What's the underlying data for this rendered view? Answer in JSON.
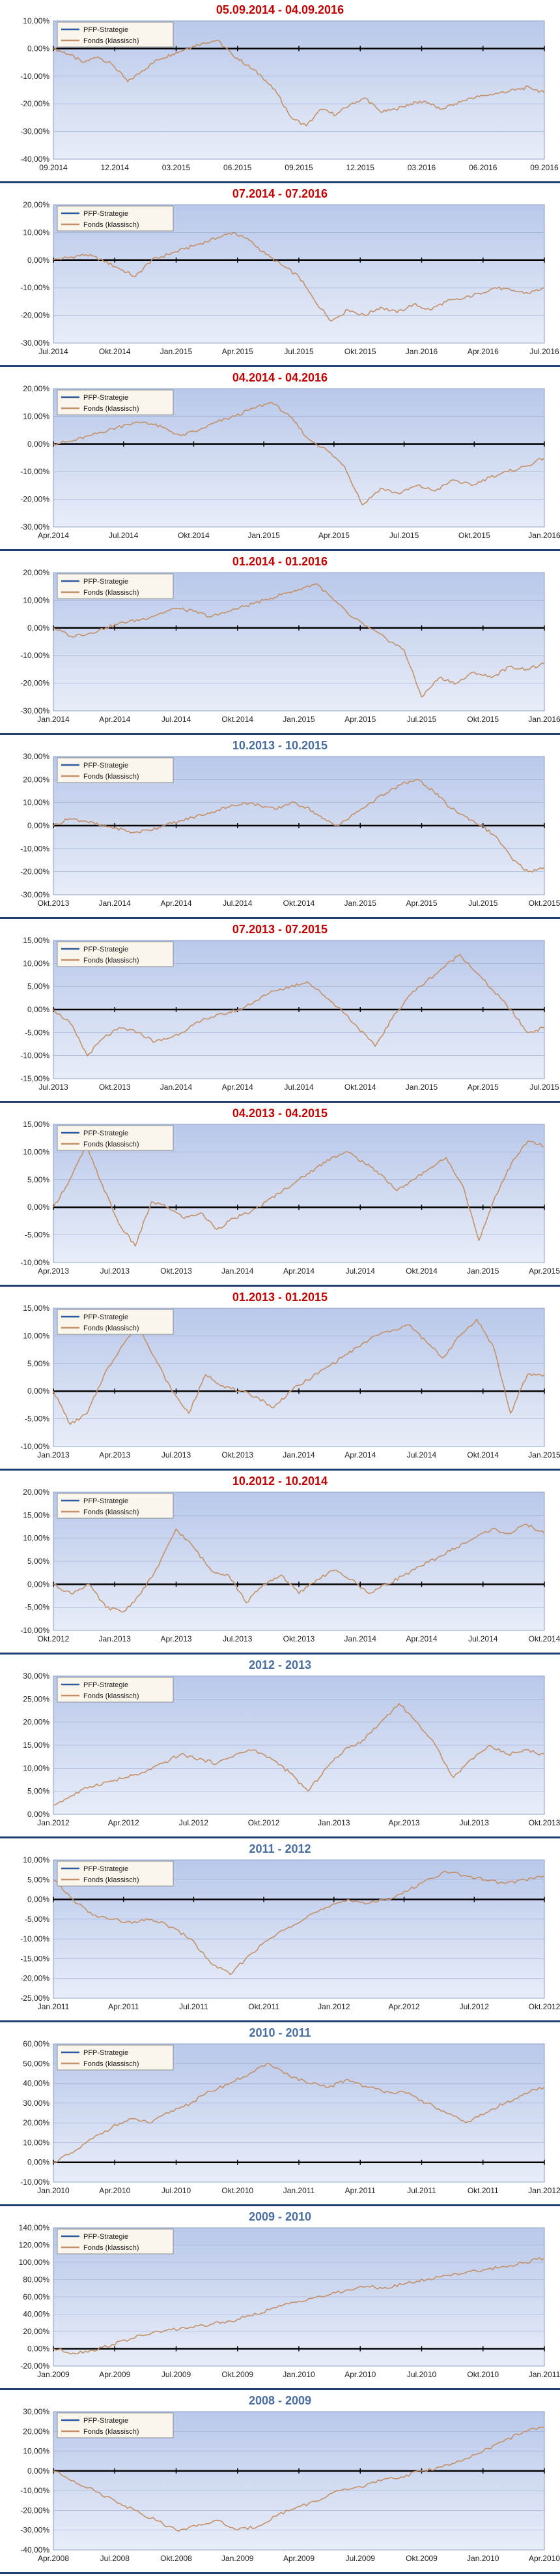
{
  "legend": {
    "strategy": "PFP-Strategie",
    "fund": "Fonds (klassisch)"
  },
  "colors": {
    "title_red": "#c00000",
    "title_blue": "#4a6da0",
    "fund_line": "#c39068",
    "strategy_line": "#2d5aa0",
    "plot_bg_top": "#b9c8ea",
    "plot_bg_bottom": "#e8edf8",
    "zero_line": "#000000",
    "divider": "#1f3f73"
  },
  "chart_data": [
    {
      "type": "line",
      "title": "05.09.2014 - 04.09.2016",
      "title_color": "red",
      "yticks": [
        "10,00%",
        "0,00%",
        "-10,00%",
        "-20,00%",
        "-30,00%",
        "-40,00%"
      ],
      "ylim": [
        -40,
        10
      ],
      "xticks": [
        "09.2014",
        "12.2014",
        "03.2015",
        "06.2015",
        "09.2015",
        "12.2015",
        "03.2016",
        "06.2016",
        "09.2016"
      ],
      "series": [
        {
          "name": "Fonds (klassisch)",
          "values": [
            0,
            -2,
            -5,
            -3,
            -6,
            -12,
            -8,
            -4,
            -2,
            0,
            2,
            3,
            -2,
            -6,
            -10,
            -16,
            -25,
            -28,
            -22,
            -24,
            -20,
            -18,
            -23,
            -22,
            -20,
            -19,
            -22,
            -20,
            -18,
            -17,
            -16,
            -15,
            -14,
            -16
          ]
        }
      ]
    },
    {
      "type": "line",
      "title": "07.2014 - 07.2016",
      "title_color": "red",
      "yticks": [
        "20,00%",
        "10,00%",
        "0,00%",
        "-10,00%",
        "-20,00%",
        "-30,00%"
      ],
      "ylim": [
        -30,
        20
      ],
      "xticks": [
        "Jul.2014",
        "Okt.2014",
        "Jan.2015",
        "Apr.2015",
        "Jul.2015",
        "Okt.2015",
        "Jan.2016",
        "Apr.2016",
        "Jul.2016"
      ],
      "series": [
        {
          "name": "Fonds (klassisch)",
          "values": [
            0,
            1,
            2,
            0,
            -3,
            -6,
            0,
            2,
            4,
            6,
            8,
            10,
            7,
            2,
            -2,
            -6,
            -15,
            -22,
            -18,
            -20,
            -17,
            -19,
            -16,
            -18,
            -15,
            -14,
            -12,
            -10,
            -11,
            -12,
            -10
          ]
        }
      ]
    },
    {
      "type": "line",
      "title": "04.2014 - 04.2016",
      "title_color": "red",
      "yticks": [
        "20,00%",
        "10,00%",
        "0,00%",
        "-10,00%",
        "-20,00%",
        "-30,00%"
      ],
      "ylim": [
        -30,
        20
      ],
      "xticks": [
        "Apr.2014",
        "Jul.2014",
        "Okt.2014",
        "Jan.2015",
        "Apr.2015",
        "Jul.2015",
        "Okt.2015",
        "Jan.2016"
      ],
      "series": [
        {
          "name": "Fonds (klassisch)",
          "values": [
            0,
            1,
            3,
            5,
            7,
            8,
            6,
            3,
            5,
            8,
            10,
            13,
            15,
            10,
            2,
            -2,
            -8,
            -22,
            -16,
            -18,
            -15,
            -17,
            -13,
            -15,
            -12,
            -10,
            -8,
            -5
          ]
        }
      ]
    },
    {
      "type": "line",
      "title": "01.2014 - 01.2016",
      "title_color": "red",
      "yticks": [
        "20,00%",
        "10,00%",
        "0,00%",
        "-10,00%",
        "-20,00%",
        "-30,00%"
      ],
      "ylim": [
        -30,
        20
      ],
      "xticks": [
        "Jan.2014",
        "Apr.2014",
        "Jul.2014",
        "Okt.2014",
        "Jan.2015",
        "Apr.2015",
        "Jul.2015",
        "Okt.2015",
        "Jan.2016"
      ],
      "series": [
        {
          "name": "Fonds (klassisch)",
          "values": [
            0,
            -3,
            -2,
            0,
            2,
            3,
            5,
            7,
            6,
            4,
            6,
            8,
            10,
            12,
            14,
            16,
            10,
            4,
            0,
            -4,
            -8,
            -25,
            -18,
            -20,
            -16,
            -18,
            -14,
            -15,
            -13
          ]
        }
      ]
    },
    {
      "type": "line",
      "title": "10.2013 - 10.2015",
      "title_color": "blue",
      "yticks": [
        "30,00%",
        "20,00%",
        "10,00%",
        "0,00%",
        "-10,00%",
        "-20,00%",
        "-30,00%"
      ],
      "ylim": [
        -30,
        30
      ],
      "xticks": [
        "Okt.2013",
        "Jan.2014",
        "Apr.2014",
        "Jul.2014",
        "Okt.2014",
        "Jan.2015",
        "Apr.2015",
        "Jul.2015",
        "Okt.2015"
      ],
      "series": [
        {
          "name": "Fonds (klassisch)",
          "values": [
            0,
            3,
            2,
            0,
            -1,
            -3,
            -2,
            0,
            2,
            4,
            6,
            8,
            10,
            9,
            7,
            10,
            8,
            3,
            0,
            5,
            10,
            14,
            18,
            20,
            15,
            8,
            4,
            0,
            -5,
            -15,
            -20,
            -18
          ]
        }
      ]
    },
    {
      "type": "line",
      "title": "07.2013 - 07.2015",
      "title_color": "red",
      "yticks": [
        "15,00%",
        "10,00%",
        "5,00%",
        "0,00%",
        "-5,00%",
        "-10,00%",
        "-15,00%"
      ],
      "ylim": [
        -15,
        15
      ],
      "xticks": [
        "Jul.2013",
        "Okt.2013",
        "Jan.2014",
        "Apr.2014",
        "Jul.2014",
        "Okt.2014",
        "Jan.2015",
        "Apr.2015",
        "Jul.2015"
      ],
      "series": [
        {
          "name": "Fonds (klassisch)",
          "values": [
            0,
            -3,
            -10,
            -6,
            -4,
            -5,
            -7,
            -6,
            -4,
            -2,
            -1,
            0,
            2,
            4,
            5,
            6,
            3,
            0,
            -4,
            -8,
            -2,
            3,
            6,
            9,
            12,
            8,
            4,
            0,
            -5,
            -4
          ]
        }
      ]
    },
    {
      "type": "line",
      "title": "04.2013 - 04.2015",
      "title_color": "red",
      "yticks": [
        "15,00%",
        "10,00%",
        "5,00%",
        "0,00%",
        "-5,00%",
        "-10,00%"
      ],
      "ylim": [
        -10,
        15
      ],
      "xticks": [
        "Apr.2013",
        "Jul.2013",
        "Okt.2013",
        "Jan.2014",
        "Apr.2014",
        "Jul.2014",
        "Okt.2014",
        "Jan.2015",
        "Apr.2015"
      ],
      "series": [
        {
          "name": "Fonds (klassisch)",
          "values": [
            0,
            5,
            11,
            4,
            -3,
            -7,
            1,
            0,
            -2,
            -1,
            -4,
            -2,
            -1,
            1,
            3,
            5,
            7,
            9,
            10,
            8,
            6,
            3,
            5,
            7,
            9,
            4,
            -6,
            2,
            8,
            12,
            11
          ]
        }
      ]
    },
    {
      "type": "line",
      "title": "01.2013 - 01.2015",
      "title_color": "red",
      "yticks": [
        "15,00%",
        "10,00%",
        "5,00%",
        "0,00%",
        "-5,00%",
        "-10,00%"
      ],
      "ylim": [
        -10,
        15
      ],
      "xticks": [
        "Jan.2013",
        "Apr.2013",
        "Jul.2013",
        "Okt.2013",
        "Jan.2014",
        "Apr.2014",
        "Jul.2014",
        "Okt.2014",
        "Jan.2015"
      ],
      "series": [
        {
          "name": "Fonds (klassisch)",
          "values": [
            0,
            -6,
            -4,
            3,
            8,
            12,
            6,
            0,
            -4,
            3,
            1,
            0,
            -1,
            -3,
            0,
            2,
            4,
            6,
            8,
            10,
            11,
            12,
            9,
            6,
            10,
            13,
            8,
            -4,
            3,
            3
          ]
        }
      ]
    },
    {
      "type": "line",
      "title": "10.2012 - 10.2014",
      "title_color": "red",
      "yticks": [
        "20,00%",
        "15,00%",
        "10,00%",
        "5,00%",
        "0,00%",
        "-5,00%",
        "-10,00%"
      ],
      "ylim": [
        -10,
        20
      ],
      "xticks": [
        "Okt.2012",
        "Jan.2013",
        "Apr.2013",
        "Jul.2013",
        "Okt.2013",
        "Jan.2014",
        "Apr.2014",
        "Jul.2014",
        "Okt.2014"
      ],
      "series": [
        {
          "name": "Fonds (klassisch)",
          "values": [
            0,
            -2,
            0,
            -5,
            -6,
            -2,
            4,
            12,
            8,
            3,
            2,
            -4,
            0,
            2,
            -2,
            1,
            3,
            1,
            -2,
            0,
            2,
            4,
            6,
            8,
            10,
            12,
            11,
            13,
            11
          ]
        }
      ]
    },
    {
      "type": "line",
      "title": "2012 - 2013",
      "title_color": "blue",
      "yticks": [
        "30,00%",
        "25,00%",
        "20,00%",
        "15,00%",
        "10,00%",
        "5,00%",
        "0,00%"
      ],
      "ylim": [
        0,
        30
      ],
      "xticks": [
        "Jan.2012",
        "Apr.2012",
        "Jul.2012",
        "Okt.2012",
        "Jan.2013",
        "Apr.2013",
        "Jul.2013",
        "Okt.2013"
      ],
      "series": [
        {
          "name": "Fonds (klassisch)",
          "values": [
            2,
            4,
            6,
            7,
            8,
            9,
            11,
            13,
            12,
            11,
            13,
            14,
            12,
            9,
            5,
            10,
            14,
            16,
            20,
            24,
            20,
            15,
            8,
            12,
            15,
            13,
            14,
            13
          ]
        }
      ]
    },
    {
      "type": "line",
      "title": "2011 - 2012",
      "title_color": "blue",
      "yticks": [
        "10,00%",
        "5,00%",
        "0,00%",
        "-5,00%",
        "-10,00%",
        "-15,00%",
        "-20,00%",
        "-25,00%"
      ],
      "ylim": [
        -25,
        10
      ],
      "xticks": [
        "Jan.2011",
        "Apr.2011",
        "Jul.2011",
        "Okt.2011",
        "Jan.2012",
        "Apr.2012",
        "Jul.2012",
        "Okt.2012"
      ],
      "series": [
        {
          "name": "Fonds (klassisch)",
          "values": [
            5,
            0,
            -4,
            -5,
            -6,
            -5,
            -7,
            -10,
            -16,
            -19,
            -14,
            -10,
            -7,
            -4,
            -2,
            0,
            -1,
            0,
            2,
            5,
            7,
            6,
            5,
            4,
            5,
            6
          ]
        }
      ]
    },
    {
      "type": "line",
      "title": "2010 - 2011",
      "title_color": "blue",
      "yticks": [
        "60,00%",
        "50,00%",
        "40,00%",
        "30,00%",
        "20,00%",
        "10,00%",
        "0,00%",
        "-10,00%"
      ],
      "ylim": [
        -10,
        60
      ],
      "xticks": [
        "Jan.2010",
        "Apr.2010",
        "Jul.2010",
        "Okt.2010",
        "Jan.2011",
        "Apr.2011",
        "Jul.2011",
        "Okt.2011",
        "Jan.2012"
      ],
      "series": [
        {
          "name": "Fonds (klassisch)",
          "values": [
            0,
            5,
            12,
            18,
            22,
            20,
            26,
            30,
            36,
            40,
            45,
            50,
            44,
            40,
            38,
            42,
            38,
            36,
            35,
            30,
            25,
            20,
            25,
            30,
            35,
            38
          ]
        }
      ]
    },
    {
      "type": "line",
      "title": "2009 - 2010",
      "title_color": "blue",
      "yticks": [
        "140,00%",
        "120,00%",
        "100,00%",
        "80,00%",
        "60,00%",
        "40,00%",
        "20,00%",
        "0,00%",
        "-20,00%"
      ],
      "ylim": [
        -20,
        140
      ],
      "xticks": [
        "Jan.2009",
        "Apr.2009",
        "Jul.2009",
        "Okt.2009",
        "Jan.2010",
        "Apr.2010",
        "Jul.2010",
        "Okt.2010",
        "Jan.2011"
      ],
      "series": [
        {
          "name": "Fonds (klassisch)",
          "values": [
            0,
            -5,
            -2,
            5,
            12,
            18,
            22,
            25,
            28,
            32,
            38,
            45,
            52,
            58,
            62,
            68,
            72,
            70,
            76,
            80,
            85,
            88,
            92,
            95,
            100,
            105
          ]
        }
      ]
    },
    {
      "type": "line",
      "title": "2008 - 2009",
      "title_color": "blue",
      "yticks": [
        "30,00%",
        "20,00%",
        "10,00%",
        "0,00%",
        "-10,00%",
        "-20,00%",
        "-30,00%",
        "-40,00%"
      ],
      "ylim": [
        -40,
        30
      ],
      "xticks": [
        "Apr.2008",
        "Jul.2008",
        "Okt.2008",
        "Jan.2009",
        "Apr.2009",
        "Jul.2009",
        "Okt.2009",
        "Jan.2010",
        "Apr.2010"
      ],
      "series": [
        {
          "name": "Fonds (klassisch)",
          "values": [
            0,
            -5,
            -10,
            -15,
            -20,
            -25,
            -30,
            -28,
            -25,
            -30,
            -28,
            -22,
            -18,
            -15,
            -10,
            -8,
            -5,
            -3,
            0,
            2,
            5,
            10,
            15,
            20,
            22
          ]
        }
      ]
    }
  ]
}
